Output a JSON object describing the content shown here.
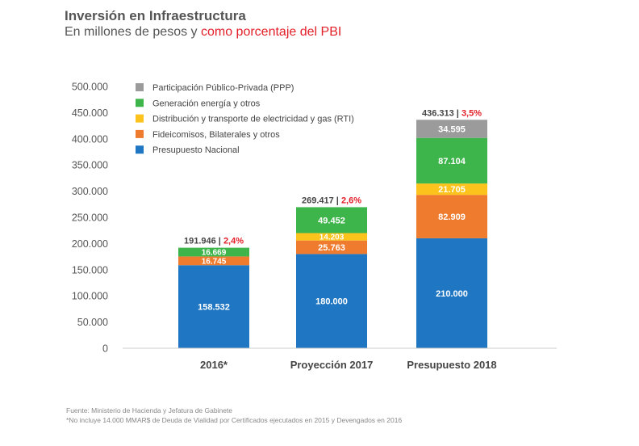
{
  "title": "Inversión en Infraestructura",
  "subtitle_part1": "En millones de pesos y",
  "subtitle_part2": "como porcentaje del PBI",
  "footer": {
    "source": "Fuente: Ministerio de Hacienda y Jefatura de Gabinete",
    "note": "*No incluye 14.000 MMAR$ de Deuda de Vialidad por Certificados ejecutados en 2015 y Devengados en 2016"
  },
  "chart_data": {
    "type": "bar",
    "stacked": true,
    "categories": [
      "2016*",
      "Proyección 2017",
      "Presupuesto 2018"
    ],
    "ylim": [
      0,
      500000
    ],
    "yticks": [
      0,
      50000,
      100000,
      150000,
      200000,
      250000,
      300000,
      350000,
      400000,
      450000,
      500000
    ],
    "ytick_labels": [
      "0",
      "50.000",
      "100.000",
      "150.000",
      "200.000",
      "250.000",
      "300.000",
      "350.000",
      "400.000",
      "450.000",
      "500.000"
    ],
    "grid": false,
    "legend_position": "top-left",
    "series": [
      {
        "name": "Presupuesto Nacional",
        "color": "#1f76c2",
        "values": [
          158532,
          180000,
          210000
        ],
        "labels": [
          "158.532",
          "180.000",
          "210.000"
        ]
      },
      {
        "name": "Fideicomisos, Bilaterales y otros",
        "color": "#ee7b2e",
        "values": [
          16745,
          25763,
          82909
        ],
        "labels": [
          "16.745",
          "25.763",
          "82.909"
        ]
      },
      {
        "name": "Distribución y transporte de electricidad y gas (RTI)",
        "color": "#fbc31b",
        "values": [
          0,
          14203,
          21705
        ],
        "labels": [
          "",
          "14.203",
          "21.705"
        ]
      },
      {
        "name": "Generación energía y otros",
        "color": "#3db54a",
        "values": [
          16669,
          49452,
          87104
        ],
        "labels": [
          "16.669",
          "49.452",
          "87.104"
        ]
      },
      {
        "name": "Participación Público-Privada (PPP)",
        "color": "#9b9b9b",
        "values": [
          0,
          0,
          34595
        ],
        "labels": [
          "",
          "",
          "34.595"
        ]
      }
    ],
    "legend_order": [
      4,
      3,
      2,
      1,
      0
    ],
    "totals": [
      {
        "value": 191946,
        "label": "191.946",
        "separator": " | ",
        "pct": "2,4%"
      },
      {
        "value": 269417,
        "label": "269.417",
        "separator": " | ",
        "pct": "2,6%"
      },
      {
        "value": 436313,
        "label": "436.313",
        "separator": " | ",
        "pct": "3,5%"
      }
    ]
  }
}
